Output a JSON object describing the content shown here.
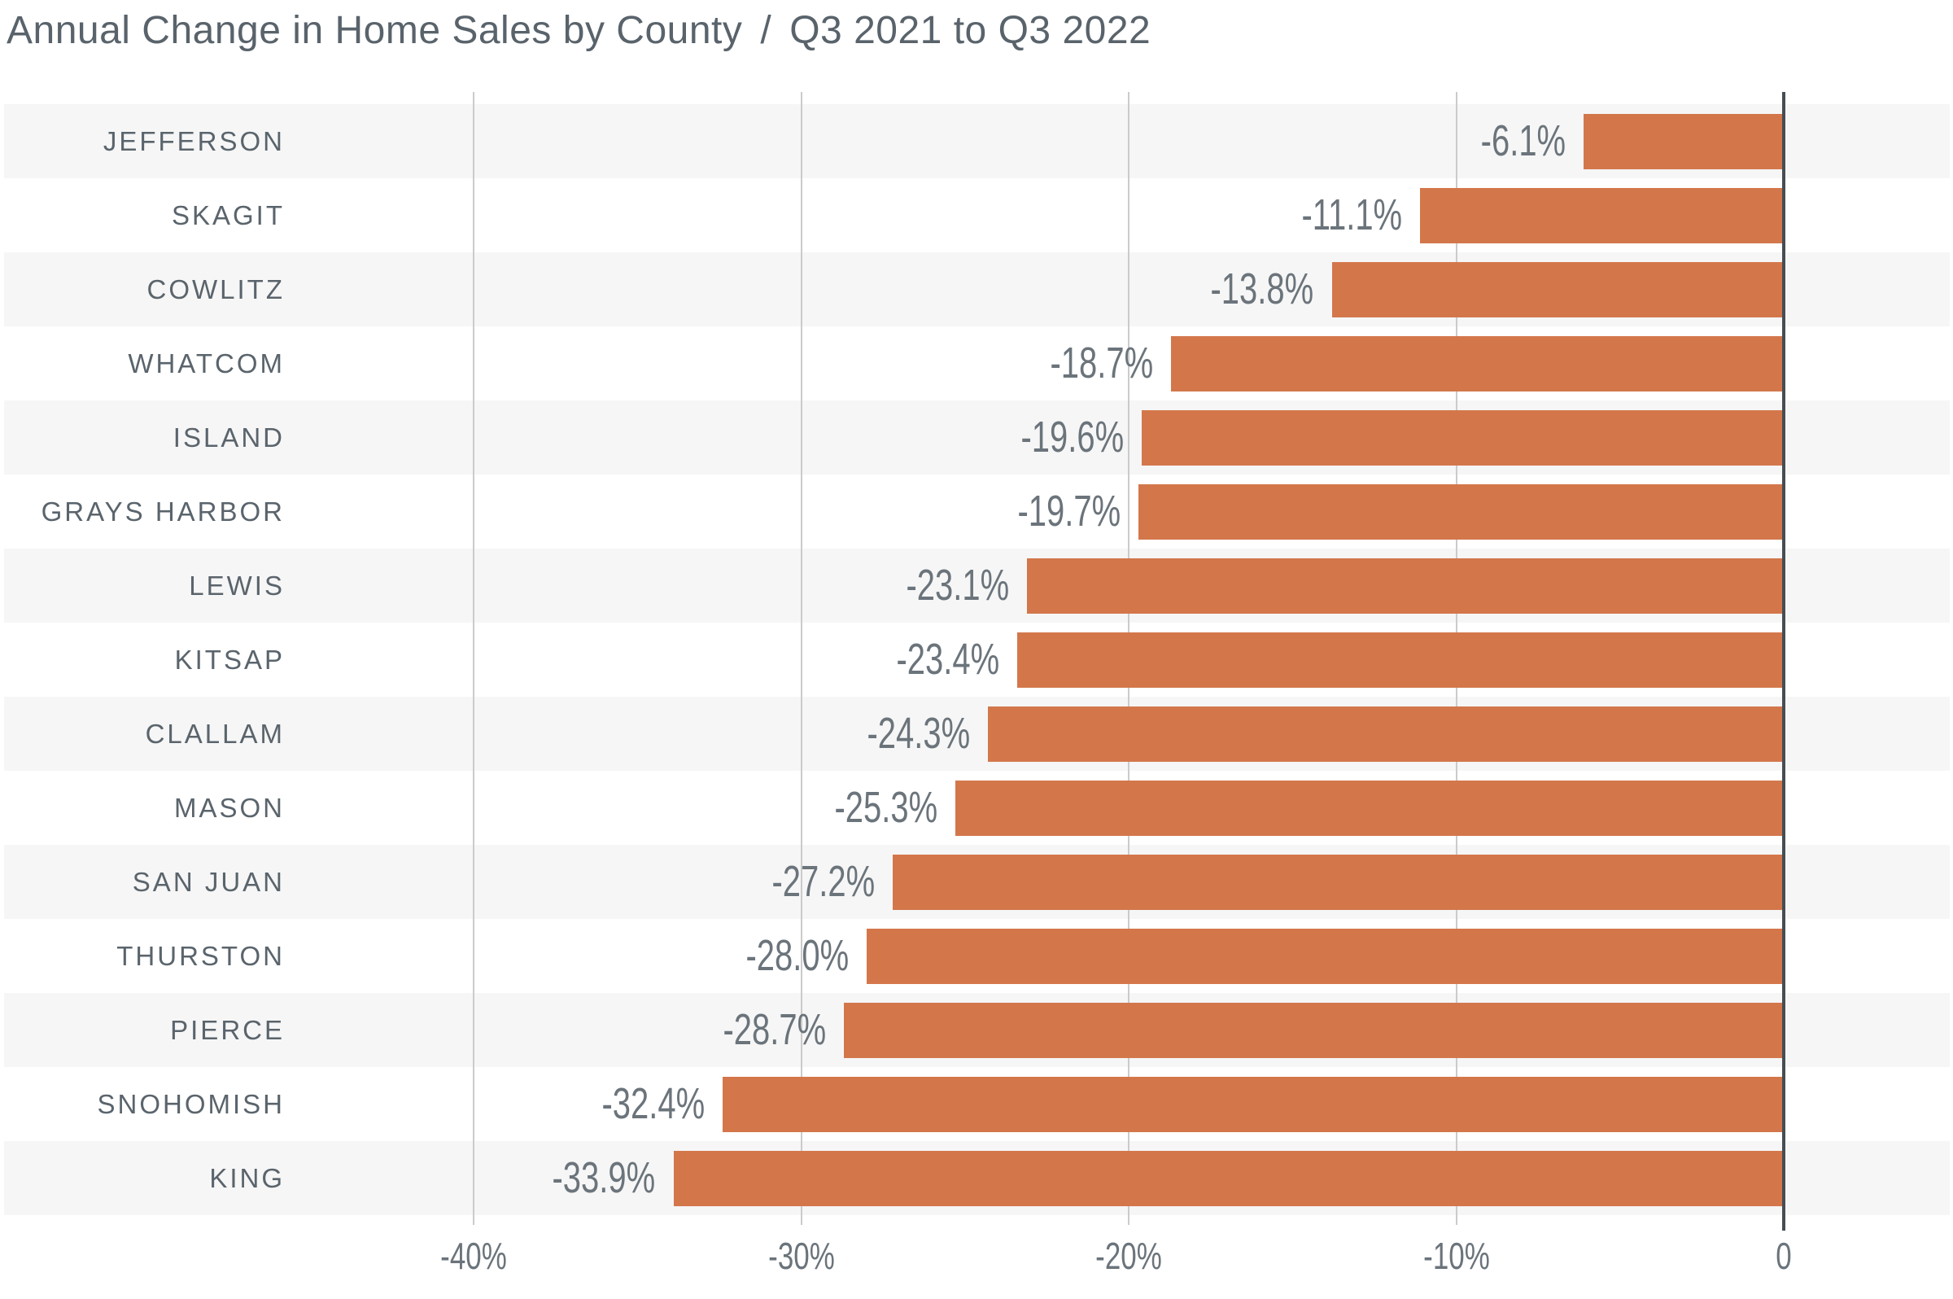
{
  "title": {
    "main": "Annual Change in Home Sales by County",
    "separator": "/",
    "period": "Q3 2021 to Q3 2022"
  },
  "chart_data": {
    "type": "bar",
    "orientation": "horizontal",
    "title": "Annual Change in Home Sales by County / Q3 2021 to Q3 2022",
    "categories": [
      "JEFFERSON",
      "SKAGIT",
      "COWLITZ",
      "WHATCOM",
      "ISLAND",
      "GRAYS HARBOR",
      "LEWIS",
      "KITSAP",
      "CLALLAM",
      "MASON",
      "SAN JUAN",
      "THURSTON",
      "PIERCE",
      "SNOHOMISH",
      "KING"
    ],
    "slugs": [
      "jefferson",
      "skagit",
      "cowlitz",
      "whatcom",
      "island",
      "grays-harbor",
      "lewis",
      "kitsap",
      "clallam",
      "mason",
      "san-juan",
      "thurston",
      "pierce",
      "snohomish",
      "king"
    ],
    "values": [
      -6.1,
      -11.1,
      -13.8,
      -18.7,
      -19.6,
      -19.7,
      -23.1,
      -23.4,
      -24.3,
      -25.3,
      -27.2,
      -28.0,
      -28.7,
      -32.4,
      -33.9
    ],
    "value_labels": [
      "-6.1%",
      "-11.1%",
      "-13.8%",
      "-18.7%",
      "-19.6%",
      "-19.7%",
      "-23.1%",
      "-23.4%",
      "-24.3%",
      "-25.3%",
      "-27.2%",
      "-28.0%",
      "-28.7%",
      "-32.4%",
      "-33.9%"
    ],
    "xlabel": "",
    "ylabel": "",
    "xlim": [
      -54,
      5
    ],
    "grid": true,
    "x_axis_ticks": [
      {
        "value": -40,
        "label": "-40%"
      },
      {
        "value": -30,
        "label": "-30%"
      },
      {
        "value": -20,
        "label": "-20%"
      },
      {
        "value": -10,
        "label": "-10%"
      },
      {
        "value": 0,
        "label": "0"
      }
    ],
    "colors": {
      "bar": "#d3774b",
      "row_stripe": "#f6f6f6",
      "row_alt": "#ffffff",
      "gridline": "#cbcbcb",
      "zero_line": "#474d52",
      "value_label": "#6b747b",
      "category_label": "#5a646c",
      "title_text": "#59636b"
    }
  }
}
